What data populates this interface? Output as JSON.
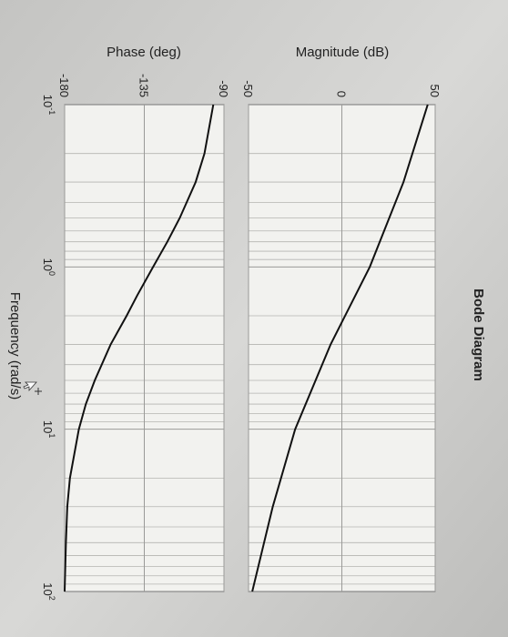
{
  "chart_data": [
    {
      "type": "line",
      "title": "Bode Diagram",
      "xlabel": "Frequency  (rad/s)",
      "ylabel": "Magnitude (dB)",
      "x_scale": "log",
      "xlim": [
        0.1,
        100
      ],
      "ylim": [
        -50,
        50
      ],
      "x_ticks": [
        0.1,
        1,
        10,
        100
      ],
      "y_ticks": [
        50,
        0,
        -50
      ],
      "y_tick_labels": [
        "50",
        "0",
        "-50"
      ],
      "grid": true,
      "series": [
        {
          "x": [
            0.1,
            0.3,
            1,
            3,
            10,
            30,
            100
          ],
          "y": [
            46,
            33,
            15,
            -6,
            -25,
            -37,
            -48
          ]
        }
      ]
    },
    {
      "type": "line",
      "xlabel": "Frequency  (rad/s)",
      "ylabel": "Phase (deg)",
      "x_scale": "log",
      "xlim": [
        0.1,
        100
      ],
      "ylim": [
        -180,
        -90
      ],
      "x_ticks": [
        0.1,
        1,
        10,
        100
      ],
      "x_tick_bases": [
        "10",
        "10",
        "10",
        "10"
      ],
      "x_tick_exponents": [
        "-1",
        "0",
        "1",
        "2"
      ],
      "y_ticks": [
        -90,
        -135,
        -180
      ],
      "y_tick_labels": [
        "-90",
        "-135",
        "-180"
      ],
      "grid": true,
      "series": [
        {
          "x": [
            0.1,
            0.2,
            0.3,
            0.5,
            0.7,
            1,
            1.5,
            2,
            3,
            5,
            7,
            10,
            20,
            30,
            50,
            100
          ],
          "y": [
            -96,
            -101,
            -106,
            -115,
            -122,
            -130,
            -139,
            -145,
            -154,
            -163,
            -168,
            -172,
            -177,
            -178.5,
            -179.3,
            -180
          ]
        }
      ]
    }
  ]
}
